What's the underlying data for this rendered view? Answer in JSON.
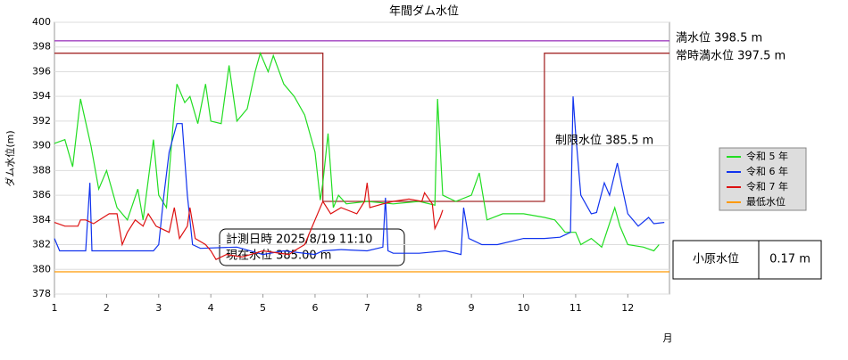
{
  "chart_data": {
    "type": "line",
    "title": "年間ダム水位",
    "y_label": "ダム水位(m)",
    "x_label": "月",
    "xlim": [
      1,
      12.8
    ],
    "xticks": [
      1,
      2,
      3,
      4,
      5,
      6,
      7,
      8,
      9,
      10,
      11,
      12
    ],
    "ylim": [
      378,
      400
    ],
    "yticks": [
      378,
      380,
      382,
      384,
      386,
      388,
      390,
      392,
      394,
      396,
      398,
      400
    ],
    "grid": true,
    "series": [
      {
        "name": "令和 5 年",
        "color": "#22dd22",
        "x": [
          1,
          1.2,
          1.35,
          1.5,
          1.7,
          1.85,
          2.0,
          2.2,
          2.4,
          2.6,
          2.7,
          2.9,
          3.0,
          3.15,
          3.3,
          3.35,
          3.5,
          3.6,
          3.75,
          3.9,
          4.0,
          4.2,
          4.35,
          4.5,
          4.7,
          4.85,
          4.95,
          5.1,
          5.2,
          5.4,
          5.6,
          5.8,
          6.0,
          6.1,
          6.15,
          6.25,
          6.35,
          6.45,
          6.6,
          7.0,
          7.5,
          8.0,
          8.3,
          8.35,
          8.45,
          8.7,
          9.0,
          9.15,
          9.3,
          9.6,
          10.0,
          10.4,
          10.6,
          10.8,
          11.0,
          11.1,
          11.3,
          11.5,
          11.75,
          11.85,
          12.0,
          12.3,
          12.5,
          12.6
        ],
        "values": [
          390.2,
          390.5,
          388.3,
          393.8,
          390,
          386.5,
          388,
          385,
          384,
          386.5,
          384,
          390.5,
          386,
          385,
          393,
          395,
          393.5,
          394,
          391.8,
          395,
          392,
          391.8,
          396.5,
          392,
          393,
          396,
          397.5,
          396,
          397.3,
          395,
          394,
          392.5,
          389.5,
          385.6,
          387,
          391,
          385,
          386,
          385.3,
          385.5,
          385.3,
          385.5,
          385.2,
          393.8,
          386,
          385.5,
          386,
          387.8,
          384,
          384.5,
          384.5,
          384.2,
          384,
          383,
          383,
          382,
          382.5,
          381.8,
          385,
          383.5,
          382,
          381.8,
          381.5,
          382
        ]
      },
      {
        "name": "令和 6 年",
        "color": "#1133ee",
        "x": [
          1,
          1.1,
          1.6,
          1.68,
          1.72,
          2.5,
          2.9,
          3.0,
          3.1,
          3.2,
          3.35,
          3.45,
          3.55,
          3.65,
          3.8,
          4.5,
          5.0,
          5.4,
          6.0,
          6.15,
          6.5,
          7.0,
          7.3,
          7.35,
          7.4,
          7.5,
          8.0,
          8.5,
          8.8,
          8.85,
          8.95,
          9.2,
          9.5,
          10.0,
          10.4,
          10.7,
          10.9,
          10.95,
          11.0,
          11.1,
          11.3,
          11.4,
          11.55,
          11.65,
          11.8,
          11.9,
          12.0,
          12.2,
          12.4,
          12.5,
          12.7
        ],
        "values": [
          382.5,
          381.5,
          381.5,
          387,
          381.5,
          381.5,
          381.5,
          382.0,
          386,
          389.5,
          391.8,
          391.8,
          386,
          382,
          381.7,
          381.8,
          381.2,
          381.5,
          381.2,
          381.5,
          381.6,
          381.5,
          381.8,
          385.8,
          381.5,
          381.3,
          381.3,
          381.5,
          381.2,
          385,
          382.5,
          382,
          382,
          382.5,
          382.5,
          382.6,
          383,
          394,
          391,
          386,
          384.5,
          384.6,
          387,
          386,
          388.6,
          386.5,
          384.5,
          383.5,
          384.2,
          383.7,
          383.8
        ]
      },
      {
        "name": "令和 7 年",
        "color": "#dd1111",
        "x": [
          1,
          1.2,
          1.45,
          1.5,
          1.6,
          1.75,
          2.05,
          2.2,
          2.3,
          2.4,
          2.55,
          2.7,
          2.8,
          2.95,
          3.2,
          3.3,
          3.4,
          3.55,
          3.6,
          3.7,
          3.9,
          4.0,
          4.1,
          4.3,
          4.6,
          5.0,
          5.5,
          5.6,
          5.8,
          6.0,
          6.15,
          6.3,
          6.5,
          6.8,
          6.95,
          7.0,
          7.05,
          7.3,
          7.5,
          7.8,
          8.05,
          8.1,
          8.25,
          8.3,
          8.4,
          8.45
        ],
        "values": [
          383.8,
          383.5,
          383.5,
          384,
          384,
          383.7,
          384.5,
          384.5,
          382,
          383,
          384,
          383.5,
          384.5,
          383.5,
          383,
          385,
          382.5,
          383.5,
          385,
          382.5,
          382,
          381.5,
          380.8,
          381.2,
          381.0,
          381.5,
          381.2,
          381.5,
          382.0,
          384,
          385.5,
          384.5,
          385,
          384.5,
          385.5,
          387,
          385,
          385.3,
          385.5,
          385.7,
          385.5,
          386.2,
          385.3,
          383.3,
          384.2,
          384.8
        ]
      },
      {
        "name": "最低水位",
        "color": "#ff9900",
        "x": [
          1,
          12.8
        ],
        "values": [
          379.8,
          379.8
        ]
      }
    ],
    "reference_lines": [
      {
        "label": "満水位 398.5 m",
        "color": "#a040c0",
        "x": [
          1,
          12.8
        ],
        "values": [
          398.5,
          398.5
        ]
      },
      {
        "label": "常時満水位 397.5 m",
        "color": "#a52a2a",
        "x": [
          1,
          6.15,
          6.15,
          10.4,
          10.4,
          12.8
        ],
        "values": [
          397.5,
          397.5,
          385.5,
          385.5,
          397.5,
          397.5
        ]
      },
      {
        "label": "制限水位 385.5 m",
        "color": "#a52a2a"
      }
    ],
    "info_box": [
      "計測日時 2025/8/19 11:10",
      "現在水位 385.00 m"
    ],
    "station": {
      "name": "小原水位",
      "value": "0.17 m"
    }
  }
}
